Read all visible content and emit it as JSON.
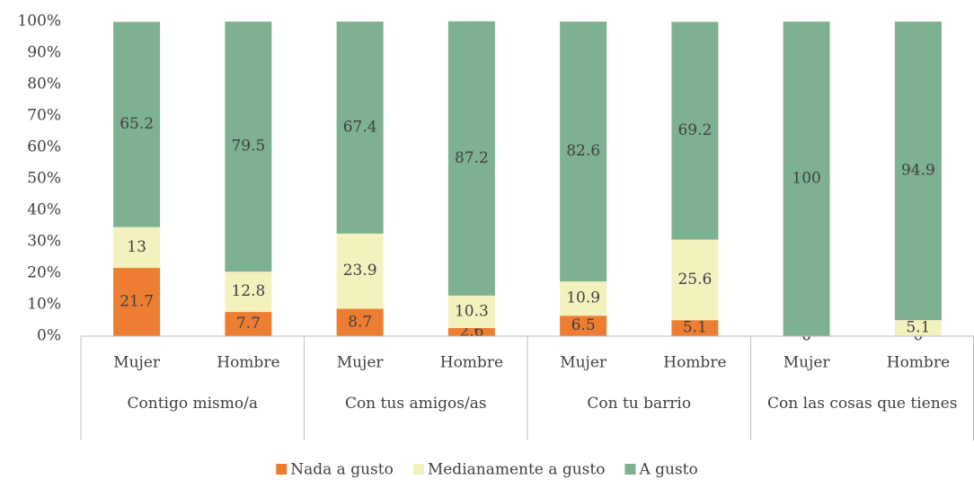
{
  "chart_data": {
    "type": "stacked_bar",
    "categories": [
      "Mujer",
      "Hombre",
      "Mujer",
      "Hombre",
      "Mujer",
      "Hombre",
      "Mujer",
      "Hombre"
    ],
    "groups": [
      "Contigo mismo/a",
      "Con tus amigos/as",
      "Con tu barrio",
      "Con las cosas que tienes"
    ],
    "series": [
      {
        "name": "Nada a gusto",
        "color": "#ED7D31",
        "values": [
          21.7,
          7.7,
          8.7,
          2.6,
          6.5,
          5.1,
          0,
          0
        ]
      },
      {
        "name": "Medianamente a gusto",
        "color": "#F3F2BE",
        "values": [
          13,
          12.8,
          23.9,
          10.3,
          10.9,
          25.6,
          0,
          5.1
        ]
      },
      {
        "name": "A gusto",
        "color": "#7DB191",
        "values": [
          65.2,
          79.5,
          67.4,
          87.2,
          82.6,
          69.2,
          100,
          94.9
        ]
      }
    ],
    "ylim": [
      0,
      100
    ],
    "yticks": [
      {
        "value": 0,
        "label": "0%"
      },
      {
        "value": 10,
        "label": "10%"
      },
      {
        "value": 20,
        "label": "20%"
      },
      {
        "value": 30,
        "label": "30%"
      },
      {
        "value": 40,
        "label": "40%"
      },
      {
        "value": 50,
        "label": "50%"
      },
      {
        "value": 60,
        "label": "60%"
      },
      {
        "value": 70,
        "label": "70%"
      },
      {
        "value": 80,
        "label": "80%"
      },
      {
        "value": 90,
        "label": "90%"
      },
      {
        "value": 100,
        "label": "100%"
      }
    ],
    "grid": false,
    "legend": "bottom"
  }
}
